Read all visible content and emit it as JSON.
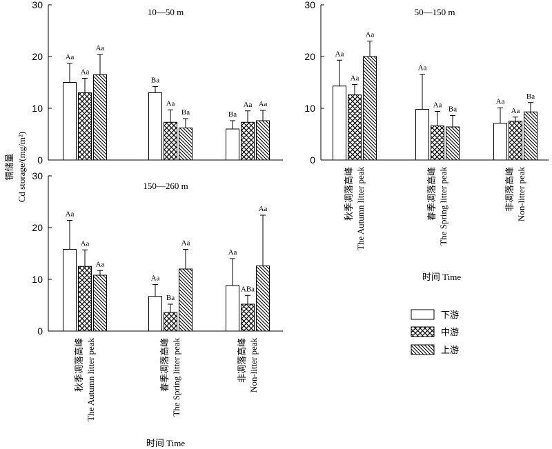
{
  "chart_data": [
    {
      "type": "bar",
      "panel": "top-left",
      "title": "10—50 m",
      "ylim": [
        0,
        30
      ],
      "yticks": [
        0,
        10,
        20,
        30
      ],
      "categories": [
        "秋季凋落高峰 The Autumn litter peak",
        "春季凋落高峰 The Spring litter peak",
        "非凋落高峰 Non-litter peak"
      ],
      "series": [
        {
          "name": "下游",
          "values": [
            15.0,
            13.0,
            6.0
          ],
          "errors": [
            3.7,
            1.2,
            1.6
          ],
          "labels": [
            "Aa",
            "Ba",
            "Ba"
          ]
        },
        {
          "name": "中游",
          "values": [
            13.0,
            7.3,
            7.3
          ],
          "errors": [
            2.8,
            2.4,
            2.2
          ],
          "labels": [
            "Aa",
            "Aa",
            "Aa"
          ]
        },
        {
          "name": "上游",
          "values": [
            16.5,
            6.2,
            7.6
          ],
          "errors": [
            3.9,
            1.8,
            2.0
          ],
          "labels": [
            "Aa",
            "Ba",
            "Aa"
          ]
        }
      ]
    },
    {
      "type": "bar",
      "panel": "top-right",
      "title": "50—150 m",
      "ylim": [
        0,
        30
      ],
      "yticks": [
        0,
        10,
        20,
        30
      ],
      "categories": [
        "秋季凋落高峰 The Autumn litter peak",
        "春季凋落高峰 The Spring litter peak",
        "非凋落高峰 Non-litter peak"
      ],
      "series": [
        {
          "name": "下游",
          "values": [
            14.3,
            9.8,
            7.1
          ],
          "errors": [
            5.0,
            6.8,
            3.0
          ],
          "labels": [
            "Aa",
            "Aa",
            "Aa"
          ]
        },
        {
          "name": "中游",
          "values": [
            12.6,
            6.6,
            7.5
          ],
          "errors": [
            2.0,
            2.8,
            0.8
          ],
          "labels": [
            "Aa",
            "Aa",
            "Aa"
          ]
        },
        {
          "name": "上游",
          "values": [
            20.0,
            6.4,
            9.3
          ],
          "errors": [
            3.0,
            2.2,
            1.8
          ],
          "labels": [
            "Aa",
            "Ba",
            "Ba"
          ]
        }
      ]
    },
    {
      "type": "bar",
      "panel": "bottom-left",
      "title": "150—260 m",
      "ylim": [
        0,
        30
      ],
      "yticks": [
        0,
        10,
        20,
        30
      ],
      "categories": [
        "秋季凋落高峰 The Autumn litter peak",
        "春季凋落高峰 The Spring litter peak",
        "非凋落高峰 Non-litter peak"
      ],
      "series": [
        {
          "name": "下游",
          "values": [
            15.8,
            6.7,
            8.8
          ],
          "errors": [
            5.6,
            2.3,
            5.2
          ],
          "labels": [
            "Aa",
            "Aa",
            "Aa"
          ]
        },
        {
          "name": "中游",
          "values": [
            12.5,
            3.6,
            5.2
          ],
          "errors": [
            3.2,
            1.6,
            1.7
          ],
          "labels": [
            "Aa",
            "Ba",
            "ABa"
          ]
        },
        {
          "name": "上游",
          "values": [
            10.8,
            12.0,
            12.6
          ],
          "errors": [
            0.9,
            3.8,
            9.8
          ],
          "labels": [
            "Aa",
            "Aa",
            "Aa"
          ]
        }
      ]
    }
  ],
  "cat_lines": [
    [
      "秋季凋落高峰",
      "The Autumn litter peak"
    ],
    [
      "春季凋落高峰",
      "The Spring litter peak"
    ],
    [
      "非凋落高峰",
      "Non-litter peak"
    ]
  ],
  "ylabel": {
    "zh": "镉储量",
    "en": "Cd storage/(mg/m²)"
  },
  "xlabel": "时间 Time",
  "legend": [
    {
      "name": "下游",
      "pattern": "none"
    },
    {
      "name": "中游",
      "pattern": "cross"
    },
    {
      "name": "上游",
      "pattern": "diag"
    }
  ]
}
